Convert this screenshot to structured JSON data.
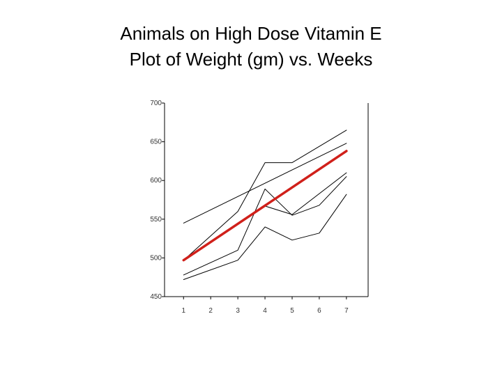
{
  "title_line1": "Animals on High Dose Vitamin E",
  "title_line2": "Plot of Weight (gm) vs. Weeks",
  "chart_data": {
    "type": "line",
    "x": [
      1,
      2,
      3,
      4,
      5,
      6,
      7
    ],
    "xlim": [
      0.3,
      7.8
    ],
    "ylim": [
      450,
      700
    ],
    "x_tick_labels": [
      "1",
      "2",
      "3",
      "4",
      "5",
      "6",
      "7"
    ],
    "y_ticks": [
      450,
      500,
      550,
      600,
      650,
      700
    ],
    "y_tick_labels": [
      "450",
      "500",
      "550",
      "600",
      "650",
      "700"
    ],
    "grid": false,
    "series": [
      {
        "values": [
          545,
          null,
          null,
          null,
          null,
          null,
          648
        ],
        "color": "#000000"
      },
      {
        "values": [
          497,
          null,
          560,
          623,
          623,
          null,
          665
        ],
        "color": "#000000"
      },
      {
        "values": [
          497,
          null,
          null,
          567,
          556,
          null,
          610
        ],
        "color": "#000000"
      },
      {
        "values": [
          478,
          null,
          510,
          589,
          555,
          568,
          605
        ],
        "color": "#000000"
      },
      {
        "values": [
          472,
          null,
          497,
          540,
          523,
          532,
          582
        ],
        "color": "#000000"
      },
      {
        "values": [
          497,
          null,
          null,
          null,
          null,
          null,
          638
        ],
        "color": "#d0201a",
        "emphasis": true
      }
    ]
  }
}
